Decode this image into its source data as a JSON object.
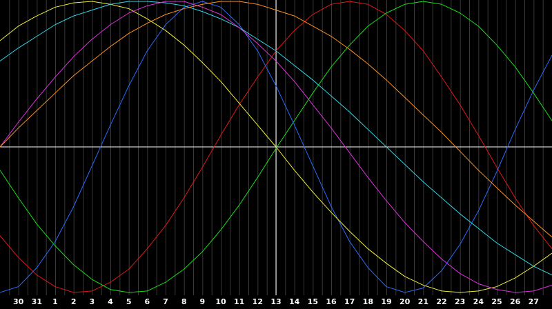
{
  "chart_data": {
    "type": "line",
    "categories": [
      null,
      "30",
      "31",
      "1",
      "2",
      "3",
      "4",
      "5",
      "6",
      "7",
      "8",
      "9",
      "10",
      "11",
      "12",
      "13",
      "14",
      "15",
      "16",
      "17",
      "18",
      "19",
      "20",
      "21",
      "22",
      "23",
      "24",
      "25",
      "26",
      "27",
      null
    ],
    "ylim": [
      -100,
      100
    ],
    "grid": true,
    "series": [
      {
        "color": "#e01818",
        "values": [
          -61,
          -76,
          -88,
          -96,
          -100,
          -99,
          -93,
          -84,
          -70,
          -54,
          -35,
          -14,
          8,
          29,
          48,
          66,
          80,
          91,
          98,
          100,
          98,
          91,
          80,
          66,
          48,
          29,
          8,
          -14,
          -35,
          -54,
          -70
        ]
      },
      {
        "color": "#18e018",
        "values": [
          -16,
          -35,
          -53,
          -68,
          -81,
          -91,
          -98,
          -100,
          -99,
          -93,
          -84,
          -72,
          -57,
          -40,
          -21,
          -1,
          18,
          37,
          55,
          70,
          83,
          92,
          98,
          100,
          98,
          92,
          83,
          70,
          55,
          37,
          18
        ]
      },
      {
        "color": "#2a6cff",
        "values": [
          -100,
          -96,
          -83,
          -65,
          -41,
          -13,
          15,
          42,
          66,
          84,
          96,
          100,
          96,
          84,
          66,
          42,
          15,
          -13,
          -41,
          -65,
          -83,
          -96,
          -100,
          -97,
          -85,
          -67,
          -44,
          -17,
          12,
          39,
          63
        ]
      },
      {
        "color": "#f0f040",
        "values": [
          73,
          83,
          90,
          96,
          99,
          100,
          98,
          95,
          88,
          80,
          70,
          58,
          45,
          30,
          15,
          0,
          -16,
          -31,
          -45,
          -58,
          -70,
          -80,
          -89,
          -95,
          -99,
          -100,
          -99,
          -96,
          -90,
          -82,
          -73
        ]
      },
      {
        "color": "#30d8e8",
        "values": [
          59,
          68,
          76,
          84,
          90,
          94,
          98,
          100,
          100,
          99,
          97,
          93,
          88,
          82,
          74,
          66,
          56,
          46,
          35,
          24,
          12,
          0,
          -12,
          -24,
          -35,
          -46,
          -56,
          -66,
          -74,
          -82,
          -88
        ]
      },
      {
        "color": "#e030e0",
        "values": [
          0,
          17,
          33,
          48,
          62,
          74,
          84,
          92,
          97,
          100,
          100,
          96,
          91,
          82,
          71,
          59,
          45,
          29,
          13,
          -4,
          -21,
          -37,
          -52,
          -65,
          -77,
          -87,
          -94,
          -98,
          -100,
          -99,
          -95
        ]
      },
      {
        "color": "#ff9020",
        "values": [
          0,
          13,
          25,
          37,
          49,
          59,
          69,
          78,
          85,
          91,
          95,
          98,
          100,
          100,
          98,
          94,
          90,
          83,
          76,
          67,
          57,
          46,
          34,
          22,
          10,
          -3,
          -16,
          -28,
          -40,
          -51,
          -62
        ]
      }
    ]
  }
}
